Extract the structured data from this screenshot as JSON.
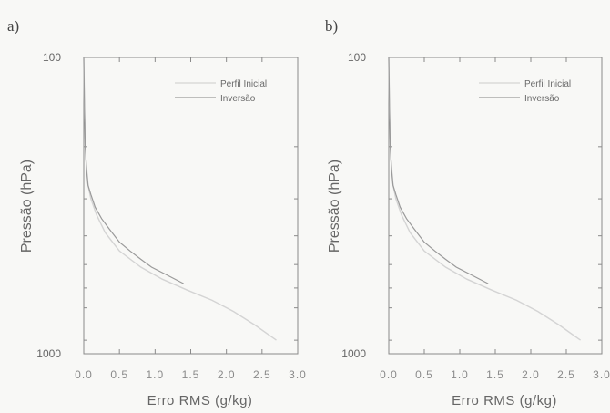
{
  "chart_data": [
    {
      "panel_label": "a)",
      "type": "line",
      "xlabel": "Erro RMS (g/kg)",
      "ylabel": "Pressão (hPa)",
      "xlim": [
        0,
        3.0
      ],
      "ylim": [
        100,
        1000
      ],
      "y_scale": "log",
      "y_inverted": true,
      "ytick_labels": [
        "100",
        "1000"
      ],
      "xtick_labels": [
        "0.0",
        "0.5",
        "1.0",
        "1.5",
        "2.0",
        "2.5",
        "3.0"
      ],
      "xticks": [
        0,
        0.5,
        1.0,
        1.5,
        2.0,
        2.5,
        3.0
      ],
      "legend_position": "top-right",
      "grid": false,
      "series": [
        {
          "name": "Perfil Inicial",
          "color": "#d4d4d4",
          "x": [
            0.0,
            0.01,
            0.03,
            0.06,
            0.1,
            0.18,
            0.3,
            0.5,
            0.8,
            1.1,
            1.45,
            1.8,
            2.1,
            2.4,
            2.7
          ],
          "y": [
            100,
            150,
            220,
            270,
            300,
            340,
            390,
            450,
            510,
            560,
            610,
            660,
            720,
            800,
            900
          ]
        },
        {
          "name": "Inversão",
          "color": "#9a9a9a",
          "x": [
            0.0,
            0.01,
            0.02,
            0.04,
            0.06,
            0.1,
            0.16,
            0.25,
            0.36,
            0.5,
            0.65,
            0.8,
            0.95,
            1.15,
            1.4
          ],
          "y": [
            100,
            150,
            200,
            240,
            270,
            290,
            320,
            350,
            380,
            420,
            450,
            480,
            510,
            540,
            580
          ]
        }
      ]
    },
    {
      "panel_label": "b)",
      "type": "line",
      "xlabel": "Erro RMS (g/kg)",
      "ylabel": "Pressão (hPa)",
      "xlim": [
        0,
        3.0
      ],
      "ylim": [
        100,
        1000
      ],
      "y_scale": "log",
      "y_inverted": true,
      "ytick_labels": [
        "100",
        "1000"
      ],
      "xtick_labels": [
        "0.0",
        "0.5",
        "1.0",
        "1.5",
        "2.0",
        "2.5",
        "3.0"
      ],
      "xticks": [
        0,
        0.5,
        1.0,
        1.5,
        2.0,
        2.5,
        3.0
      ],
      "legend_position": "top-right",
      "grid": false,
      "series": [
        {
          "name": "Perfil Inicial",
          "color": "#d4d4d4",
          "x": [
            0.0,
            0.01,
            0.03,
            0.06,
            0.1,
            0.18,
            0.3,
            0.5,
            0.8,
            1.1,
            1.45,
            1.8,
            2.1,
            2.4,
            2.7
          ],
          "y": [
            100,
            150,
            220,
            270,
            300,
            340,
            390,
            450,
            510,
            560,
            610,
            660,
            720,
            800,
            900
          ]
        },
        {
          "name": "Inversão",
          "color": "#9a9a9a",
          "x": [
            0.0,
            0.01,
            0.02,
            0.04,
            0.06,
            0.1,
            0.16,
            0.25,
            0.36,
            0.5,
            0.65,
            0.8,
            0.95,
            1.15,
            1.4
          ],
          "y": [
            100,
            150,
            200,
            240,
            270,
            290,
            320,
            350,
            380,
            420,
            450,
            480,
            510,
            540,
            580
          ]
        }
      ]
    }
  ]
}
